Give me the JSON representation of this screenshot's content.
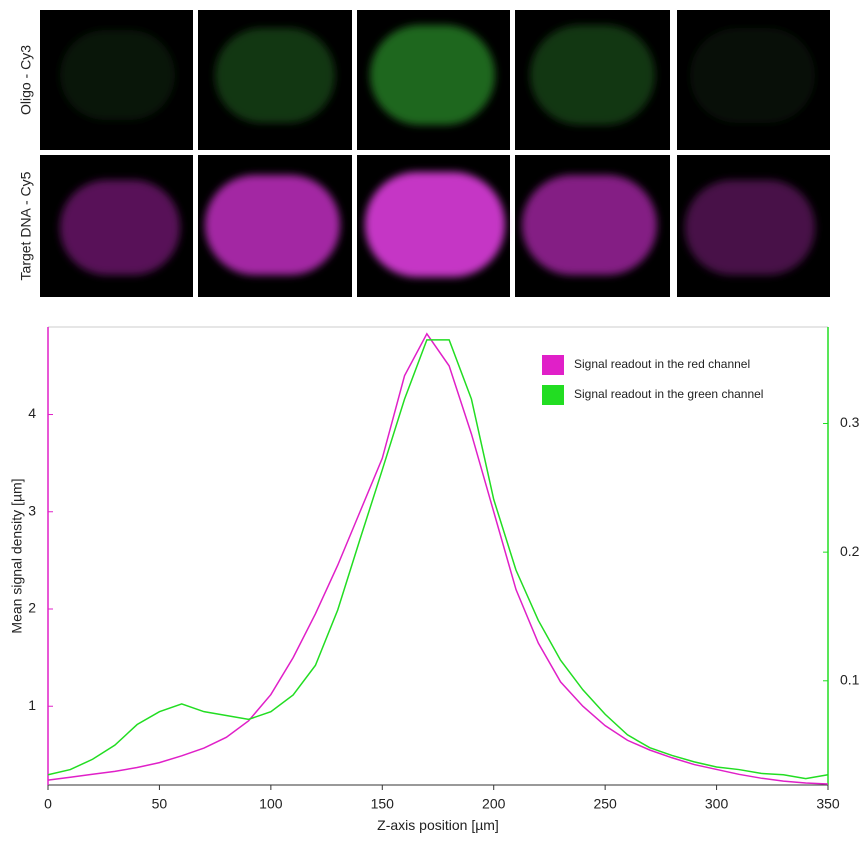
{
  "images": {
    "row_labels": [
      "Oligo - Cy3",
      "Target DNA - Cy5"
    ]
  },
  "chart_data": {
    "type": "line",
    "xlabel": "Z-axis position [µm]",
    "ylabel": "Mean signal density [µm]",
    "x": [
      0,
      10,
      20,
      30,
      40,
      50,
      60,
      70,
      80,
      90,
      100,
      110,
      120,
      130,
      140,
      150,
      160,
      170,
      180,
      190,
      200,
      210,
      220,
      230,
      240,
      250,
      260,
      270,
      280,
      290,
      300,
      310,
      320,
      330,
      340,
      350
    ],
    "series": [
      {
        "name": "Signal readout in the red channel",
        "color": "#e020c8",
        "axis": "y",
        "values": [
          0.24,
          0.27,
          0.3,
          0.33,
          0.37,
          0.42,
          0.49,
          0.57,
          0.68,
          0.85,
          1.12,
          1.5,
          1.95,
          2.45,
          3.0,
          3.55,
          4.4,
          4.83,
          4.5,
          3.8,
          3.0,
          2.2,
          1.65,
          1.25,
          1.0,
          0.8,
          0.65,
          0.55,
          0.47,
          0.4,
          0.35,
          0.3,
          0.26,
          0.23,
          0.21,
          0.2
        ]
      },
      {
        "name": "Signal readout in the green channel",
        "color": "#22dd22",
        "axis": "y2",
        "values": [
          0.027,
          0.031,
          0.039,
          0.05,
          0.066,
          0.076,
          0.082,
          0.076,
          0.073,
          0.07,
          0.076,
          0.089,
          0.112,
          0.155,
          0.21,
          0.264,
          0.319,
          0.365,
          0.365,
          0.319,
          0.241,
          0.186,
          0.147,
          0.116,
          0.093,
          0.074,
          0.058,
          0.048,
          0.042,
          0.037,
          0.033,
          0.031,
          0.028,
          0.027,
          0.024,
          0.027
        ]
      }
    ],
    "xlim": [
      0,
      350
    ],
    "xticks": [
      0,
      50,
      100,
      150,
      200,
      250,
      300,
      350
    ],
    "ylim": [
      0.19,
      4.9
    ],
    "yticks": [
      1,
      2,
      3,
      4
    ],
    "y2lim": [
      0.019,
      0.375
    ],
    "y2ticks": [
      0.1,
      0.2,
      0.3
    ],
    "legend": "upper right",
    "grid": false
  }
}
